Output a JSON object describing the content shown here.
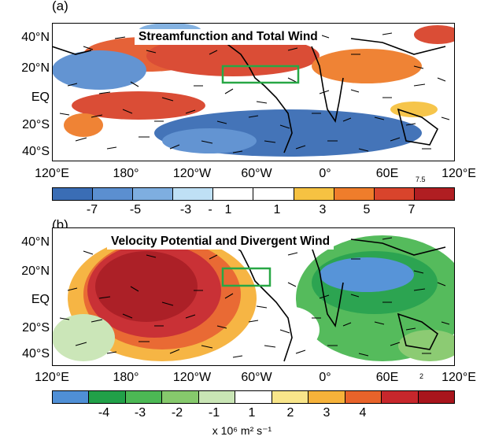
{
  "panel_a": {
    "letter": "(a)",
    "title": "Streamfunction and Total Wind",
    "y_labels": [
      "40°N",
      "20°N",
      "EQ",
      "20°S",
      "40°S"
    ],
    "x_labels": [
      "120°E",
      "180°",
      "120°W",
      "60°W",
      "0°",
      "60E",
      "120°E"
    ],
    "reference_vector": "7.5",
    "colorbar": {
      "colors": [
        "#3a6db5",
        "#5b8fd0",
        "#7eaee0",
        "#bfe0f5",
        "#ffffff",
        "#ffffff",
        "#f6c242",
        "#ef7d2b",
        "#d9442c",
        "#b01e22"
      ],
      "labels": [
        "-7",
        "-5",
        "-3",
        "-",
        "1",
        "1",
        "3",
        "5",
        "7"
      ]
    }
  },
  "panel_b": {
    "letter": "(b)",
    "title": "Velocity Potential and Divergent Wind",
    "y_labels": [
      "40°N",
      "20°N",
      "EQ",
      "20°S",
      "40°S"
    ],
    "x_labels": [
      "120°E",
      "180°",
      "120°W",
      "60°W",
      "0°",
      "60E",
      "120°E"
    ],
    "reference_vector": "2",
    "colorbar": {
      "colors": [
        "#4f8fd6",
        "#21a048",
        "#4cb854",
        "#86c96c",
        "#c9e5b5",
        "#ffffff",
        "#f8e58a",
        "#f6b23a",
        "#e8632a",
        "#c7272c",
        "#a8151c"
      ],
      "labels": [
        "-4",
        "-3",
        "-2",
        "-1",
        "1",
        "2",
        "3",
        "4"
      ]
    },
    "units": "x 10⁶ m² s⁻¹"
  }
}
